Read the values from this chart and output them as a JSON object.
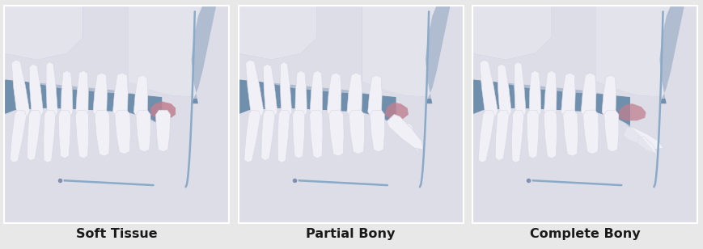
{
  "bg_color": "#e8e8e8",
  "panel_border": "#ffffff",
  "blue_sinus": "#6f8fad",
  "bone_light": "#dddde8",
  "bone_highlight": "#eeeef4",
  "tooth_white": "#f0f0f6",
  "tooth_shadow": "#d8d8e4",
  "tooth_mid": "#e4e4ef",
  "gum_pink": "#c08090",
  "nerve_color": "#8aaac8",
  "nerve_dot_color": "#8090b0",
  "labels": [
    "Soft Tissue",
    "Partial Bony",
    "Complete Bony"
  ],
  "font_size": 11.5,
  "label_color": "#1a1a1a"
}
